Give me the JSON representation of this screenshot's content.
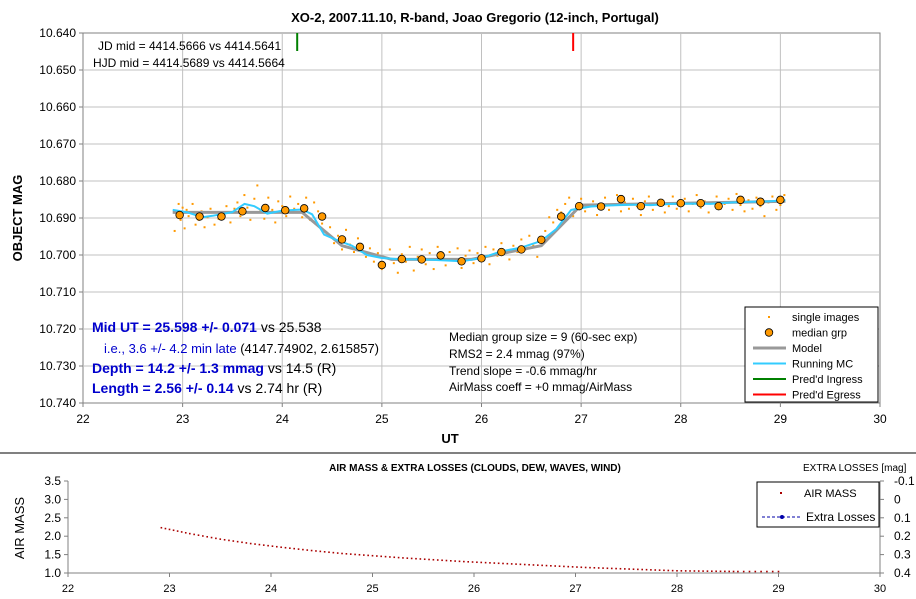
{
  "chart_data": [
    {
      "type": "scatter",
      "title": "XO-2, 2007.11.10, R-band, Joao Gregorio (12-inch, Portugal)",
      "xlabel": "UT",
      "ylabel": "OBJECT MAG",
      "xlim": [
        22,
        30
      ],
      "ylim": [
        10.64,
        10.74
      ],
      "y_inverted": true,
      "grid": true,
      "x_ticks": [
        "22",
        "23",
        "24",
        "25",
        "26",
        "27",
        "28",
        "29",
        "30"
      ],
      "y_ticks": [
        "10.640",
        "10.650",
        "10.660",
        "10.670",
        "10.680",
        "10.690",
        "10.700",
        "10.710",
        "10.720",
        "10.730",
        "10.740"
      ],
      "legend_position": "bottom-right",
      "legend": [
        {
          "label": "single images",
          "color": "#ff9900",
          "marker": "dot"
        },
        {
          "label": "median grp",
          "color": "#ff9900",
          "marker": "circle"
        },
        {
          "label": "Model",
          "color": "#999999",
          "marker": "line"
        },
        {
          "label": "Running MC",
          "color": "#33ccff",
          "marker": "line"
        },
        {
          "label": "Pred'd Ingress",
          "color": "#008000",
          "marker": "line"
        },
        {
          "label": "Pred'd Egress",
          "color": "#ff0000",
          "marker": "line"
        }
      ],
      "annotations": {
        "jd_mid": "JD mid = 4414.5666 vs 4414.5641",
        "hjd_mid": "HJD mid = 4414.5689 vs 4414.5664",
        "mid_ut_bold": "Mid UT = 25.598 +/- 0.071",
        "mid_ut_rest": " vs 25.538",
        "ie_blue": "i.e., 3.6 +/- 4.2 min late",
        "ie_rest": " (4147.74902, 2.615857)",
        "depth_bold": "Depth = 14.2 +/- 1.3 mmag",
        "depth_rest": " vs 14.5 (R)",
        "length_bold": "Length = 2.56 +/- 0.14",
        "length_rest": " vs 2.74 hr (R)",
        "median_group": "Median group size = 9 (60-sec exp)",
        "rms": "RMS2 = 2.4 mmag (97%)",
        "trend": "Trend slope = -0.6 mmag/hr",
        "airmass_coeff": "AirMass coeff = +0 mmag/AirMass"
      },
      "predicted_ingress_ut": 24.15,
      "predicted_egress_ut": 26.92,
      "median_grp": {
        "x": [
          22.97,
          23.17,
          23.39,
          23.6,
          23.83,
          24.03,
          24.22,
          24.4,
          24.6,
          24.78,
          25.0,
          25.2,
          25.4,
          25.59,
          25.8,
          26.0,
          26.2,
          26.4,
          26.6,
          26.8,
          26.98,
          27.2,
          27.4,
          27.6,
          27.8,
          28.0,
          28.2,
          28.38,
          28.6,
          28.8,
          29.0
        ],
        "y": [
          10.6892,
          10.6896,
          10.6896,
          10.6882,
          10.6873,
          10.6879,
          10.6874,
          10.6896,
          10.6958,
          10.6978,
          10.7027,
          10.7011,
          10.7012,
          10.7001,
          10.7017,
          10.7009,
          10.6992,
          10.6985,
          10.6959,
          10.6896,
          10.6868,
          10.6869,
          10.6849,
          10.6868,
          10.6859,
          10.686,
          10.686,
          10.6868,
          10.6851,
          10.6856,
          10.6851
        ]
      },
      "model": {
        "x": [
          22.9,
          24.2,
          24.6,
          25.1,
          25.9,
          26.6,
          27.0,
          29.05
        ],
        "y": [
          10.6885,
          10.6885,
          10.6975,
          10.7012,
          10.7012,
          10.6975,
          10.6865,
          10.6855
        ]
      },
      "running_mc": {
        "x": [
          22.9,
          23.05,
          23.2,
          23.3,
          23.5,
          23.62,
          23.72,
          23.85,
          24.0,
          24.2,
          24.3,
          24.42,
          24.55,
          24.7,
          24.85,
          25.0,
          25.2,
          25.4,
          25.6,
          25.8,
          26.0,
          26.2,
          26.4,
          26.6,
          26.75,
          26.9,
          27.1,
          27.3,
          27.5,
          27.7,
          27.9,
          28.1,
          28.3,
          28.5,
          28.7,
          28.9,
          29.05
        ],
        "y": [
          10.6878,
          10.6885,
          10.6898,
          10.6894,
          10.6884,
          10.6862,
          10.6868,
          10.6888,
          10.688,
          10.6877,
          10.689,
          10.6945,
          10.696,
          10.6975,
          10.7,
          10.7008,
          10.7012,
          10.7012,
          10.7014,
          10.7017,
          10.7008,
          10.699,
          10.698,
          10.6962,
          10.693,
          10.6878,
          10.6869,
          10.6866,
          10.6864,
          10.6865,
          10.6862,
          10.6861,
          10.6862,
          10.6858,
          10.6856,
          10.6855,
          10.6852
        ]
      },
      "single_images": {
        "x": [
          22.92,
          22.94,
          22.96,
          22.98,
          23.0,
          23.02,
          23.04,
          23.06,
          23.1,
          23.13,
          23.16,
          23.19,
          23.22,
          23.25,
          23.28,
          23.32,
          23.36,
          23.4,
          23.44,
          23.48,
          23.52,
          23.55,
          23.58,
          23.62,
          23.65,
          23.68,
          23.72,
          23.75,
          23.78,
          23.82,
          23.86,
          23.9,
          23.93,
          23.96,
          24.0,
          24.04,
          24.08,
          24.12,
          24.16,
          24.2,
          24.24,
          24.28,
          24.32,
          24.36,
          24.4,
          24.44,
          24.48,
          24.52,
          24.56,
          24.6,
          24.64,
          24.68,
          24.72,
          24.76,
          24.8,
          24.84,
          24.88,
          24.92,
          24.96,
          25.0,
          25.04,
          25.08,
          25.12,
          25.16,
          25.2,
          25.24,
          25.28,
          25.32,
          25.36,
          25.4,
          25.44,
          25.48,
          25.52,
          25.56,
          25.6,
          25.64,
          25.68,
          25.72,
          25.76,
          25.8,
          25.84,
          25.88,
          25.92,
          25.96,
          26.0,
          26.04,
          26.08,
          26.12,
          26.16,
          26.2,
          26.24,
          26.28,
          26.32,
          26.36,
          26.4,
          26.44,
          26.48,
          26.52,
          26.56,
          26.6,
          26.64,
          26.68,
          26.72,
          26.76,
          26.8,
          26.84,
          26.88,
          26.92,
          26.96,
          27.0,
          27.04,
          27.08,
          27.12,
          27.16,
          27.2,
          27.24,
          27.28,
          27.32,
          27.36,
          27.4,
          27.44,
          27.48,
          27.52,
          27.56,
          27.6,
          27.64,
          27.68,
          27.72,
          27.76,
          27.8,
          27.84,
          27.88,
          27.92,
          27.96,
          28.0,
          28.04,
          28.08,
          28.12,
          28.16,
          28.2,
          28.24,
          28.28,
          28.32,
          28.36,
          28.4,
          28.44,
          28.48,
          28.52,
          28.56,
          28.6,
          28.64,
          28.68,
          28.72,
          28.76,
          28.8,
          28.84,
          28.88,
          28.92,
          28.96,
          29.0,
          29.04
        ],
        "y": [
          10.6935,
          10.6885,
          10.6862,
          10.6905,
          10.6872,
          10.6928,
          10.6878,
          10.6895,
          10.6862,
          10.6918,
          10.6905,
          10.6882,
          10.6925,
          10.6898,
          10.6875,
          10.6918,
          10.6902,
          10.6885,
          10.6868,
          10.6912,
          10.6875,
          10.6858,
          10.6895,
          10.6838,
          10.6872,
          10.6905,
          10.6848,
          10.6812,
          10.6878,
          10.6902,
          10.6845,
          10.6878,
          10.6912,
          10.6855,
          10.6868,
          10.6895,
          10.6842,
          10.6875,
          10.6862,
          10.6898,
          10.6845,
          10.6905,
          10.6858,
          10.6882,
          10.6915,
          10.6938,
          10.6925,
          10.6968,
          10.6948,
          10.6985,
          10.6932,
          10.6972,
          10.6992,
          10.6955,
          10.6978,
          10.7005,
          10.6982,
          10.7018,
          10.6995,
          10.7038,
          10.7008,
          10.6985,
          10.7022,
          10.7048,
          10.6998,
          10.7018,
          10.6978,
          10.7042,
          10.7005,
          10.6985,
          10.7025,
          10.6995,
          10.7038,
          10.6978,
          10.7008,
          10.7028,
          10.6992,
          10.7015,
          10.6982,
          10.7035,
          10.7002,
          10.6988,
          10.7022,
          10.6995,
          10.7012,
          10.6978,
          10.7025,
          10.6985,
          10.7002,
          10.6968,
          10.6995,
          10.7012,
          10.6975,
          10.6992,
          10.6958,
          10.6985,
          10.6948,
          10.6975,
          10.7005,
          10.6958,
          10.6935,
          10.6898,
          10.6912,
          10.6878,
          10.6885,
          10.6862,
          10.6845,
          10.6895,
          10.6872,
          10.6848,
          10.6882,
          10.6865,
          10.6855,
          10.6892,
          10.6872,
          10.6845,
          10.6878,
          10.6865,
          10.6838,
          10.6882,
          10.6858,
          10.6875,
          10.6848,
          10.6868,
          10.6892,
          10.6855,
          10.6842,
          10.6878,
          10.6862,
          10.6852,
          10.6885,
          10.6868,
          10.6842,
          10.6875,
          10.6858,
          10.6848,
          10.6882,
          10.6862,
          10.6838,
          10.6872,
          10.6855,
          10.6885,
          10.6858,
          10.6842,
          10.6875,
          10.6862,
          10.6848,
          10.6878,
          10.6835,
          10.6865,
          10.6882,
          10.6852,
          10.6875,
          10.6845,
          10.6868,
          10.6895,
          10.6858,
          10.6842,
          10.6878,
          10.6865,
          10.6838
        ]
      }
    },
    {
      "type": "line",
      "title": "AIR MASS & EXTRA LOSSES (CLOUDS, DEW, WAVES, WIND)",
      "ylabel": "AIR MASS",
      "y2label": "EXTRA LOSSES [mag]",
      "xlim": [
        22,
        30
      ],
      "ylim": [
        1.0,
        3.5
      ],
      "y2lim": [
        -0.1,
        0.4
      ],
      "y2_inverted": true,
      "x_ticks": [
        "22",
        "23",
        "24",
        "25",
        "26",
        "27",
        "28",
        "29",
        "30"
      ],
      "y_ticks": [
        "1.0",
        "1.5",
        "2.0",
        "2.5",
        "3.0",
        "3.5"
      ],
      "y2_ticks": [
        "-0.1",
        "0",
        "0.1",
        "0.2",
        "0.3",
        "0.4"
      ],
      "legend_position": "top-right",
      "series": [
        {
          "name": "AIR MASS",
          "color": "#aa0000",
          "x": [
            22.92,
            23.2,
            23.5,
            23.8,
            24.1,
            24.4,
            24.7,
            25.0,
            25.3,
            25.6,
            25.9,
            26.2,
            26.5,
            26.8,
            27.1,
            27.4,
            27.7,
            28.0,
            28.3,
            28.6,
            29.0
          ],
          "values": [
            2.23,
            2.07,
            1.92,
            1.8,
            1.7,
            1.61,
            1.53,
            1.47,
            1.41,
            1.36,
            1.31,
            1.27,
            1.23,
            1.19,
            1.15,
            1.12,
            1.09,
            1.06,
            1.05,
            1.04,
            1.04
          ]
        },
        {
          "name": "Extra Losses",
          "color": "#0000aa",
          "x": [],
          "values": []
        }
      ]
    }
  ]
}
